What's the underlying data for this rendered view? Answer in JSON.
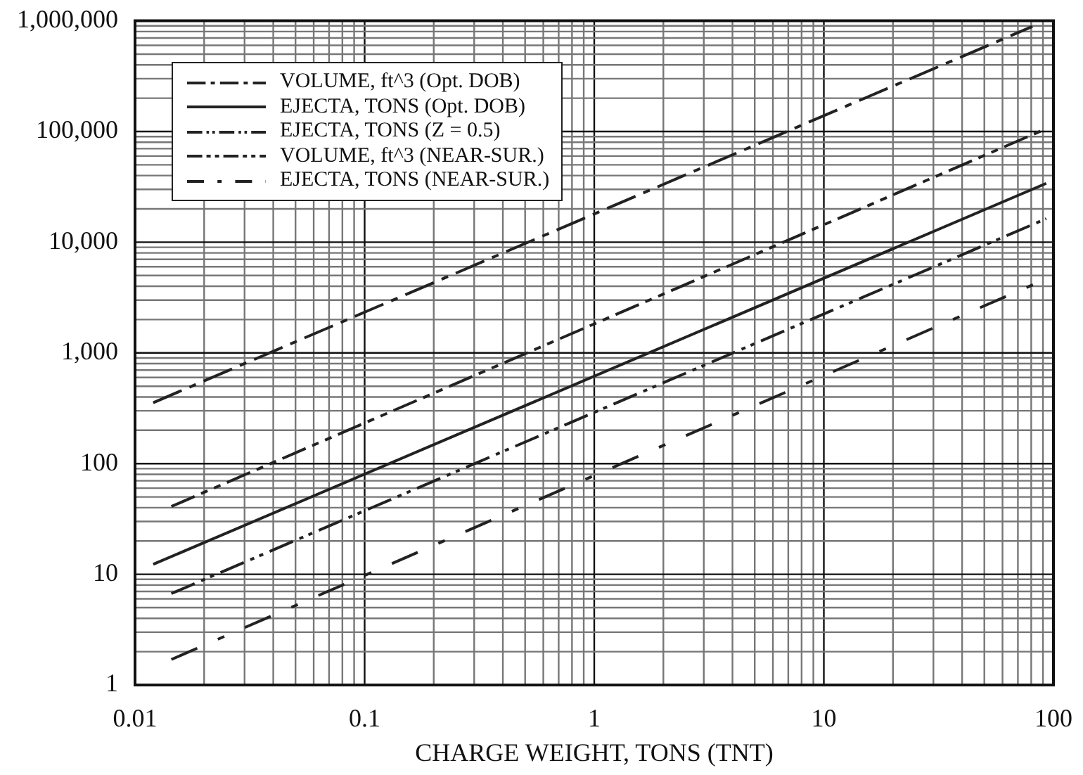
{
  "chart_data": {
    "type": "line",
    "xlabel": "CHARGE WEIGHT, TONS (TNT)",
    "log": "xy",
    "grid": true,
    "legend": "top left",
    "marker": "none",
    "xlim": [
      0.01,
      100
    ],
    "xticks": [
      0.01,
      0.1,
      1,
      10,
      100
    ],
    "ylim": [
      1,
      1000000
    ],
    "yticks": [
      {
        "value": 1,
        "label": "1"
      },
      {
        "value": 10,
        "label": "10"
      },
      {
        "value": 100,
        "label": "100"
      },
      {
        "value": 1000,
        "label": "1,000"
      },
      {
        "value": 10000,
        "label": "10,000"
      },
      {
        "value": 100000,
        "label": "100,000"
      },
      {
        "value": 1000000,
        "label": "1,000,000"
      }
    ],
    "series": [
      {
        "name": "VOLUME, ft^3 (Opt. DOB)",
        "color": "#222222",
        "line_style": "dashed",
        "x": [
          0.012,
          81
        ],
        "values": [
          355,
          890000
        ]
      },
      {
        "name": "EJECTA, TONS (Opt. DOB)",
        "color": "#222222",
        "line_style": "solid",
        "x": [
          0.012,
          93
        ],
        "values": [
          12.3,
          34000
        ]
      },
      {
        "name": "EJECTA, TONS (Z = 0.5)",
        "color": "#222222",
        "line_style": "dashed",
        "x": [
          0.0144,
          93
        ],
        "values": [
          6.7,
          16300
        ]
      },
      {
        "name": "VOLUME, ft^3 (NEAR-SUR.)",
        "color": "#222222",
        "line_style": "dashed",
        "x": [
          0.0144,
          93
        ],
        "values": [
          41,
          106000
        ]
      },
      {
        "name": "EJECTA, TONS (NEAR-SUR.)",
        "color": "#222222",
        "line_style": "dashed",
        "x": [
          0.0144,
          93
        ],
        "values": [
          1.7,
          4660
        ]
      }
    ]
  }
}
